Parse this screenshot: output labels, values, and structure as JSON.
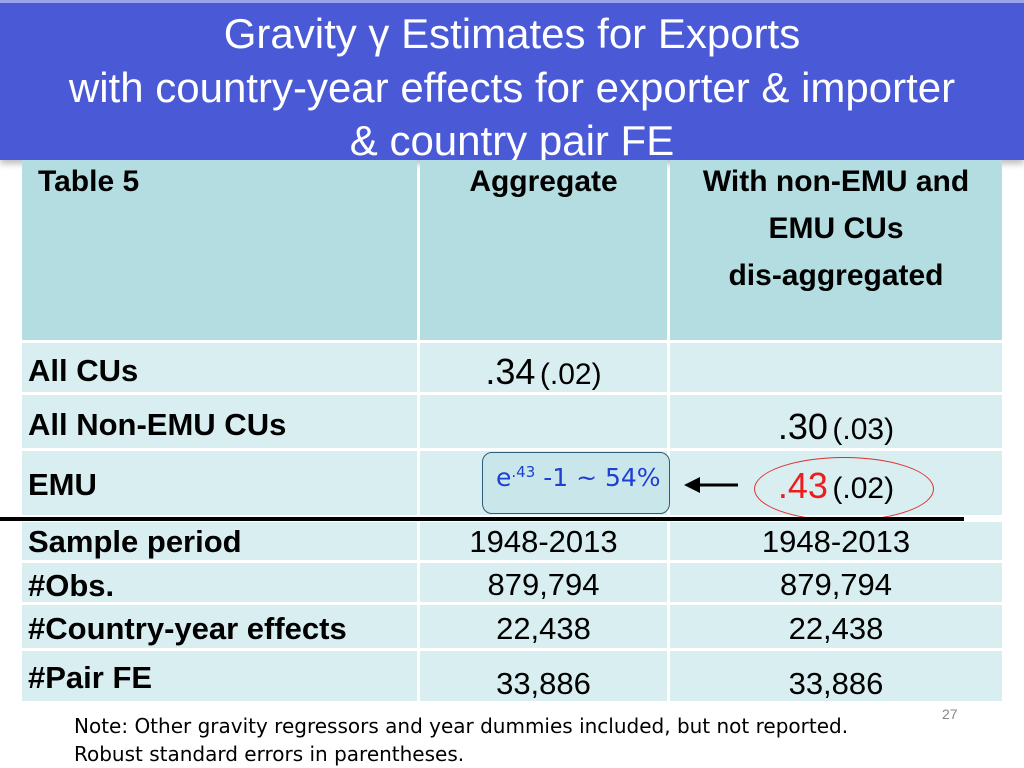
{
  "title": {
    "line1": "Gravity γ Estimates for Exports",
    "line2": "with country-year effects for exporter & importer",
    "line3": "& country pair FE"
  },
  "table": {
    "header": {
      "label": "Table 5",
      "col1": "Aggregate",
      "col2_line1": "With non-EMU and",
      "col2_line2": "EMU CUs",
      "col2_line3": "dis-aggregated"
    },
    "rows": [
      {
        "label": "All CUs",
        "col1_coef": ".34",
        "col1_se": "(.02)",
        "col2_coef": "",
        "col2_se": ""
      },
      {
        "label": "All Non-EMU CUs",
        "col1_coef": "",
        "col1_se": "",
        "col2_coef": ".30",
        "col2_se": "(.03)"
      },
      {
        "label": "EMU",
        "col1_coef": "",
        "col1_se": "",
        "col2_coef": ".43",
        "col2_se": "(.02)"
      },
      {
        "label": "Sample period",
        "col1": "1948-2013",
        "col2": "1948-2013"
      },
      {
        "label": "#Obs.",
        "col1": "879,794",
        "col2": "879,794"
      },
      {
        "label": "#Country-year effects",
        "col1": "22,438",
        "col2": "22,438"
      },
      {
        "label": "#Pair FE",
        "col1": "33,886",
        "col2": "33,886"
      }
    ]
  },
  "callout": {
    "base": "e",
    "exponent": ".43",
    "rest": "-1 ~ 54%"
  },
  "note": {
    "line1": "Note: Other gravity regressors and year dummies included, but not reported.",
    "line2": "Robust standard errors in parentheses."
  },
  "page_number": "27",
  "colors": {
    "title_bg": "#4a5ad6",
    "header_cell": "#b3dde0",
    "body_cell": "#d8eef0",
    "highlight": "#ee1c1c",
    "callout_text": "#1f3fd0"
  }
}
